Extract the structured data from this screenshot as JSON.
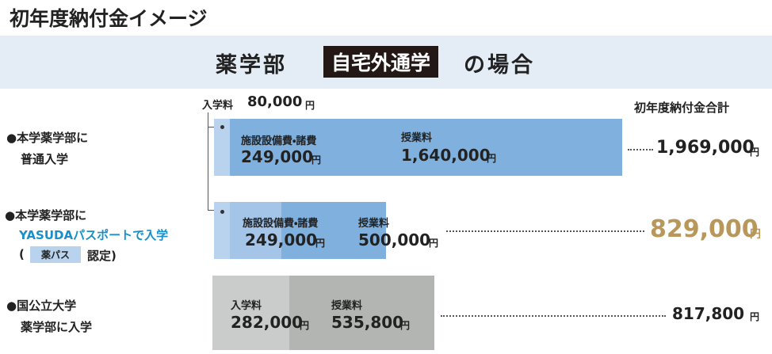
{
  "header": {
    "title": "初年度納付金イメージ"
  },
  "banner": {
    "prefix": "薬学部",
    "badge": "自宅外通学",
    "suffix": "の場合"
  },
  "unit": "円",
  "total_heading": "初年度納付金合計",
  "entrance_note": {
    "label": "入学料",
    "amount": "80,000"
  },
  "rows": [
    {
      "lines": [
        "●本学薬学部に",
        "普通入学"
      ],
      "items": [
        {
          "label": "施設設備費・諸費",
          "amount": "249,000"
        },
        {
          "label": "授業料",
          "amount": "1,640,000"
        }
      ],
      "total": "1,969,000"
    },
    {
      "lines": [
        "●本学薬学部に",
        "YASUDAパスポートで入学"
      ],
      "paren_open": "(",
      "badge": "薬パス",
      "paren_close": "認定)",
      "items": [
        {
          "label": "施設設備費・諸費",
          "amount": "249,000"
        },
        {
          "label": "授業料",
          "amount": "500,000"
        }
      ],
      "total": "829,000"
    },
    {
      "lines": [
        "●国公立大学",
        "薬学部に入学"
      ],
      "items": [
        {
          "label": "入学料",
          "amount": "282,000"
        },
        {
          "label": "授業料",
          "amount": "535,800"
        }
      ],
      "total": "817,800"
    }
  ]
}
